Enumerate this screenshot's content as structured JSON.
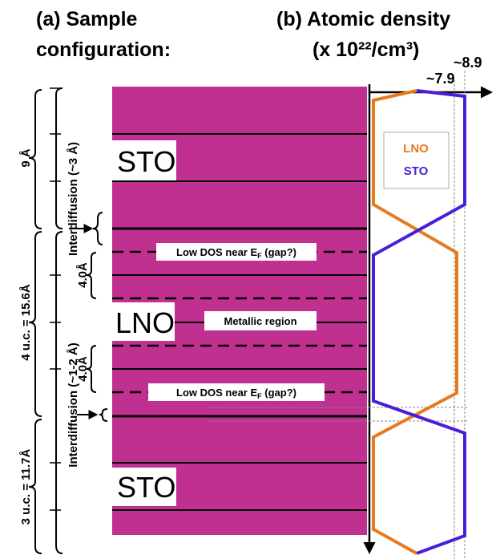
{
  "panel_a": {
    "title_lines": [
      "(a) Sample",
      "configuration:"
    ],
    "layers": [
      "STO",
      "LNO",
      "STO"
    ],
    "low_dos": [
      "Low DOS near E",
      "F",
      " (gap?)"
    ],
    "metallic": "Metallic region",
    "spacings": [
      "4.0Å",
      "4.0Å"
    ],
    "thicknesses": [
      "9 Å",
      "4 u.c. = 15.6Å",
      "3 u.c. = 11.7Å"
    ],
    "interdiffusion": [
      "Interdiffusion (~3 Å)",
      "Interdiffusion (~1-2 Å)"
    ]
  },
  "panel_b": {
    "title_lines": [
      "(b) Atomic density",
      "(x 10²²/cm³)"
    ],
    "ticks": [
      "~8.9",
      "~7.9"
    ],
    "legend": [
      "LNO",
      "STO"
    ]
  }
}
